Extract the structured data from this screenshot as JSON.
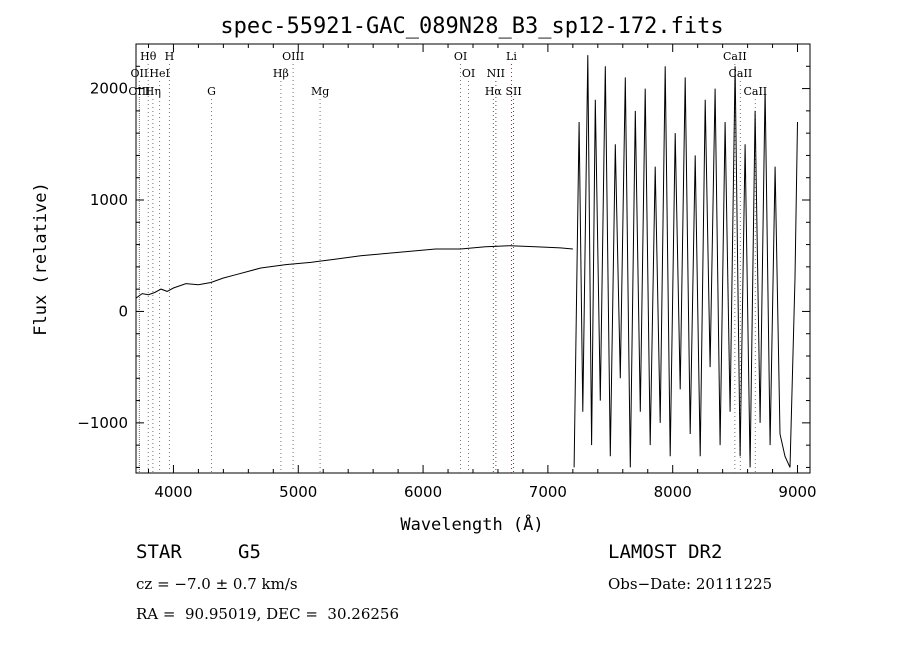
{
  "chart_data": {
    "type": "line",
    "title": "spec-55921-GAC_089N28_B3_sp12-172.fits",
    "xlabel": "Wavelength (Å)",
    "ylabel": "Flux (relative)",
    "xlim": [
      3700,
      9100
    ],
    "ylim": [
      -1450,
      2400
    ],
    "xticks": [
      4000,
      5000,
      6000,
      7000,
      8000,
      9000
    ],
    "xtick_labels": [
      "4000",
      "5000",
      "6000",
      "7000",
      "8000",
      "9000"
    ],
    "yticks": [
      -1000,
      0,
      1000,
      2000
    ],
    "ytick_labels": [
      "−1000",
      "0",
      "1000",
      "2000"
    ],
    "grid": false,
    "line_color": "#000000",
    "marker_color": "#ff0000",
    "spectrum_continuum": {
      "x": [
        3700,
        3750,
        3800,
        3850,
        3900,
        3950,
        4000,
        4100,
        4200,
        4300,
        4400,
        4500,
        4700,
        4900,
        5100,
        5300,
        5500,
        5700,
        5900,
        6100,
        6300,
        6500,
        6700,
        6900,
        7100,
        7200
      ],
      "y": [
        120,
        160,
        150,
        170,
        200,
        180,
        210,
        250,
        240,
        260,
        300,
        330,
        390,
        420,
        440,
        470,
        500,
        520,
        540,
        560,
        560,
        580,
        590,
        580,
        570,
        560
      ]
    },
    "spectrum_noisy": {
      "x": [
        7210,
        7250,
        7280,
        7320,
        7350,
        7380,
        7420,
        7460,
        7500,
        7540,
        7580,
        7620,
        7660,
        7700,
        7740,
        7780,
        7820,
        7860,
        7900,
        7940,
        7980,
        8020,
        8060,
        8100,
        8140,
        8180,
        8220,
        8260,
        8300,
        8340,
        8380,
        8420,
        8460,
        8500,
        8540,
        8580,
        8620,
        8660,
        8700,
        8740,
        8780,
        8820,
        8860,
        8900,
        8940,
        8980,
        9000
      ],
      "y": [
        -1400,
        1700,
        -900,
        2300,
        -1200,
        1900,
        -800,
        2200,
        -1300,
        1500,
        -600,
        2100,
        -1400,
        1800,
        -900,
        2000,
        -1200,
        1300,
        -1000,
        2200,
        -1300,
        1600,
        -700,
        2100,
        -1100,
        1400,
        -1300,
        1900,
        -500,
        2000,
        -1200,
        1700,
        -900,
        2200,
        -1300,
        1500,
        -1400,
        1800,
        -1000,
        2000,
        -1200,
        1300,
        -1100,
        -1300,
        -1400,
        300,
        1700
      ]
    },
    "line_markers": [
      {
        "label": "Hθ",
        "x": 3798,
        "row": 0,
        "style": "dotted"
      },
      {
        "label": "H",
        "x": 3968,
        "row": 0,
        "style": "dotted"
      },
      {
        "label": "OII",
        "x": 3727,
        "row": 1,
        "style": "dotted"
      },
      {
        "label": "HeI",
        "x": 3889,
        "row": 1,
        "style": "dotted"
      },
      {
        "label": "OIII",
        "x": 3727,
        "row": 2,
        "style": "dotted"
      },
      {
        "label": "Hη",
        "x": 3835,
        "row": 2,
        "style": "dotted"
      },
      {
        "label": "G",
        "x": 4305,
        "row": 2,
        "style": "dotted"
      },
      {
        "label": "OIII",
        "x": 4959,
        "row": 0,
        "style": "dotted"
      },
      {
        "label": "Hβ",
        "x": 4861,
        "row": 1,
        "style": "dotted"
      },
      {
        "label": "Mg",
        "x": 5175,
        "row": 2,
        "style": "dotted"
      },
      {
        "label": "OI",
        "x": 6300,
        "row": 0,
        "style": "dotted"
      },
      {
        "label": "OI",
        "x": 6364,
        "row": 1,
        "style": "dotted"
      },
      {
        "label": "Li",
        "x": 6708,
        "row": 0,
        "style": "red"
      },
      {
        "label": "NII",
        "x": 6583,
        "row": 1,
        "style": "red"
      },
      {
        "label": "Hα",
        "x": 6563,
        "row": 2,
        "style": "red"
      },
      {
        "label": "SII",
        "x": 6725,
        "row": 2,
        "style": "red"
      },
      {
        "label": "CaII",
        "x": 8498,
        "row": 0,
        "style": "dotted"
      },
      {
        "label": "CaII",
        "x": 8542,
        "row": 1,
        "style": "dotted"
      },
      {
        "label": "CaII",
        "x": 8662,
        "row": 2,
        "style": "dotted"
      }
    ]
  },
  "info": {
    "class_label": "STAR",
    "subclass": "G5",
    "survey": "LAMOST DR2",
    "cz": "cz = −7.0 ± 0.7 km/s",
    "obs_date": "Obs−Date: 20111225",
    "radec": "RA =  90.95019, DEC =  30.26256"
  }
}
